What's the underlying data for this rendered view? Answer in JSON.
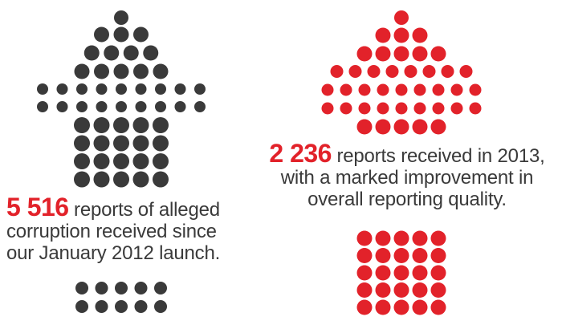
{
  "colors": {
    "dark": "#3a3a3a",
    "red": "#e2222a",
    "text": "#3a3a3a"
  },
  "left": {
    "stat": "5 516",
    "lines": [
      "reports of alleged",
      "corruption received since",
      "our January 2012 launch."
    ]
  },
  "right": {
    "stat": "2 236",
    "lines": [
      "reports received in 2013,",
      "with a marked improvement in",
      "overall reporting quality."
    ]
  }
}
